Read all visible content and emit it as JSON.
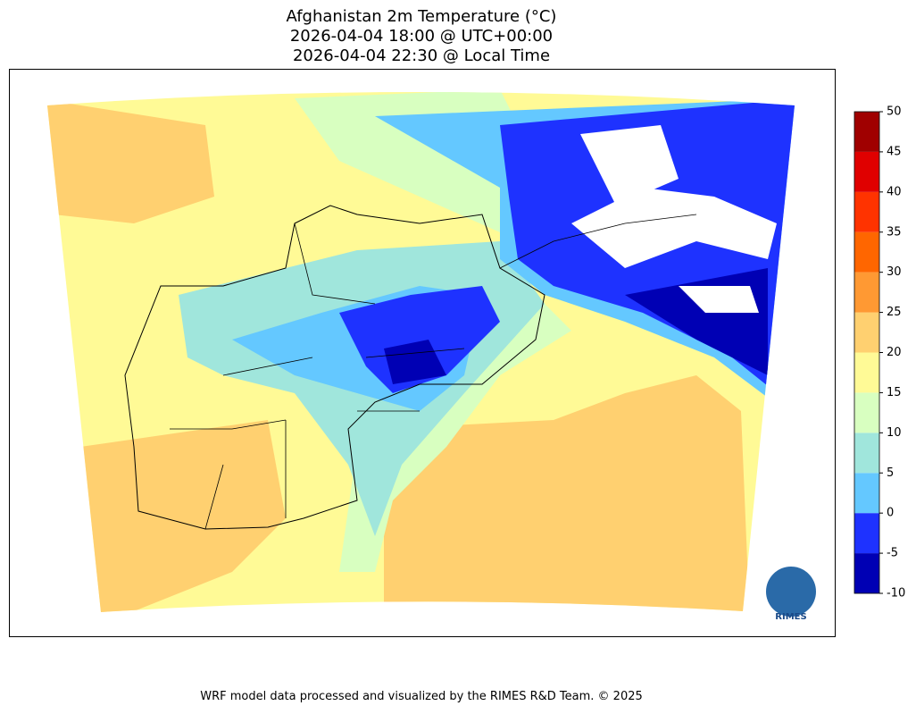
{
  "title": [
    "Afghanistan 2m Temperature (°C)",
    "2026-04-04 18:00 @ UTC+00:00",
    "2026-04-04 22:30 @ Local Time"
  ],
  "colorbar": {
    "ticks": [
      -10,
      -5,
      0,
      5,
      10,
      15,
      20,
      25,
      30,
      35,
      40,
      45,
      50
    ],
    "colors": [
      "#0000b4",
      "#1e32ff",
      "#64c8ff",
      "#a0e6dc",
      "#d8ffc0",
      "#fffa96",
      "#ffd070",
      "#ff9933",
      "#ff6600",
      "#ff3300",
      "#e00000",
      "#a00000"
    ]
  },
  "logo": "RIMES",
  "footer": "WRF model data processed and visualized by the RIMES R&D Team. © 2025"
}
